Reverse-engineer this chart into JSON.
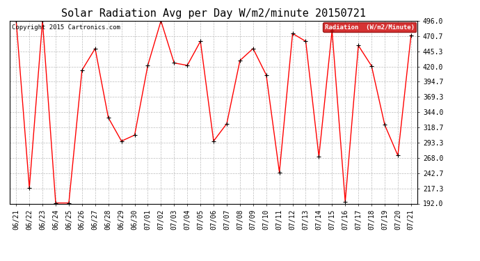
{
  "title": "Solar Radiation Avg per Day W/m2/minute 20150721",
  "copyright_text": "Copyright 2015 Cartronics.com",
  "legend_label": "Radiation  (W/m2/Minute)",
  "dates": [
    "06/21",
    "06/22",
    "06/23",
    "06/24",
    "06/25",
    "06/26",
    "06/27",
    "06/28",
    "06/29",
    "06/30",
    "07/01",
    "07/02",
    "07/03",
    "07/04",
    "07/05",
    "07/06",
    "07/07",
    "07/08",
    "07/09",
    "07/10",
    "07/11",
    "07/12",
    "07/13",
    "07/14",
    "07/15",
    "07/16",
    "07/17",
    "07/18",
    "07/19",
    "07/20",
    "07/21"
  ],
  "values": [
    496.0,
    218.0,
    496.0,
    193.0,
    193.0,
    414.0,
    450.0,
    335.0,
    296.0,
    306.0,
    422.0,
    496.0,
    426.0,
    422.0,
    462.0,
    296.0,
    325.0,
    430.0,
    450.0,
    406.0,
    244.0,
    475.0,
    462.0,
    270.0,
    480.0,
    195.0,
    455.0,
    421.0,
    323.0,
    272.0,
    472.0
  ],
  "ylim": [
    192.0,
    496.0
  ],
  "yticks": [
    192.0,
    217.3,
    242.7,
    268.0,
    293.3,
    318.7,
    344.0,
    369.3,
    394.7,
    420.0,
    445.3,
    470.7,
    496.0
  ],
  "ytick_labels": [
    "192.0",
    "217.3",
    "242.7",
    "268.0",
    "293.3",
    "318.7",
    "344.0",
    "369.3",
    "394.7",
    "420.0",
    "445.3",
    "470.7",
    "496.0"
  ],
  "line_color": "red",
  "marker_color": "black",
  "bg_color": "#ffffff",
  "grid_color": "#bbbbbb",
  "legend_bg": "#cc0000",
  "legend_text_color": "#ffffff",
  "title_fontsize": 11,
  "tick_fontsize": 7,
  "copyright_fontsize": 6.5,
  "fig_width": 6.9,
  "fig_height": 3.75,
  "dpi": 100
}
